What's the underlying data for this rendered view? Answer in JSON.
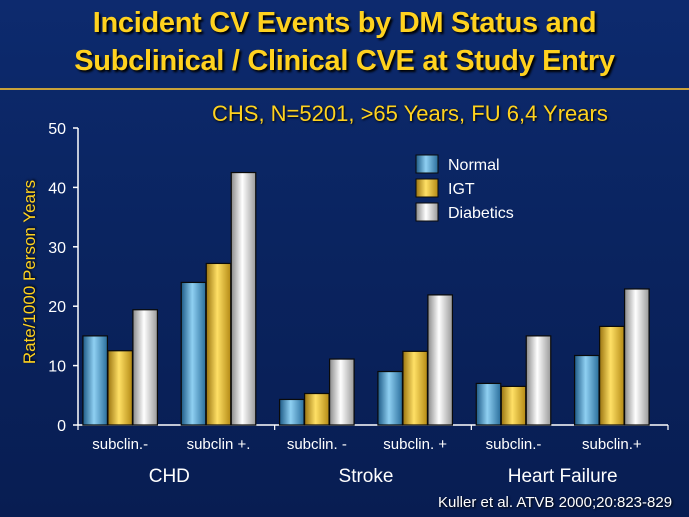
{
  "slide": {
    "title_line1": "Incident CV Events by DM Status and",
    "title_line2": "Subclinical / Clinical CVE at Study Entry",
    "subtitle": "CHS, N=5201, >65 Years, FU 6,4 Yrears",
    "credit": "Kuller et al. ATVB 2000;20:823-829"
  },
  "chart_data": {
    "type": "bar",
    "title": "Incident CV Events by DM Status and Subclinical / Clinical CVE at Study Entry",
    "subtitle": "CHS, N=5201, >65 Years, FU 6,4 Yrears",
    "ylabel": "Rate/1000 Person Years",
    "xlabel": "",
    "ylim": [
      0,
      50
    ],
    "yticks": [
      0,
      10,
      20,
      30,
      40,
      50
    ],
    "grid": false,
    "legend_position": "top-right",
    "categories": [
      "subclin.-",
      "subclin +.",
      "subclin. -",
      "subclin. +",
      "subclin.-",
      "subclin.+"
    ],
    "groups": [
      {
        "label": "CHD",
        "categories": [
          "subclin.-",
          "subclin +."
        ]
      },
      {
        "label": "Stroke",
        "categories": [
          "subclin. -",
          "subclin. +"
        ]
      },
      {
        "label": "Heart Failure",
        "categories": [
          "subclin.-",
          "subclin.+"
        ]
      }
    ],
    "series": [
      {
        "name": "Normal",
        "color": "#4a9fd0",
        "values": [
          15,
          24,
          4.3,
          9,
          7,
          11.7
        ]
      },
      {
        "name": "IGT",
        "color": "#f0c020",
        "values": [
          12.5,
          27.2,
          5.3,
          12.4,
          6.5,
          16.6
        ]
      },
      {
        "name": "Diabetics",
        "color": "#eeeeee",
        "values": [
          19.4,
          42.5,
          11.1,
          21.9,
          15,
          22.9
        ]
      }
    ],
    "axis_color": "#ffffff",
    "text_color": "#ffffff"
  }
}
